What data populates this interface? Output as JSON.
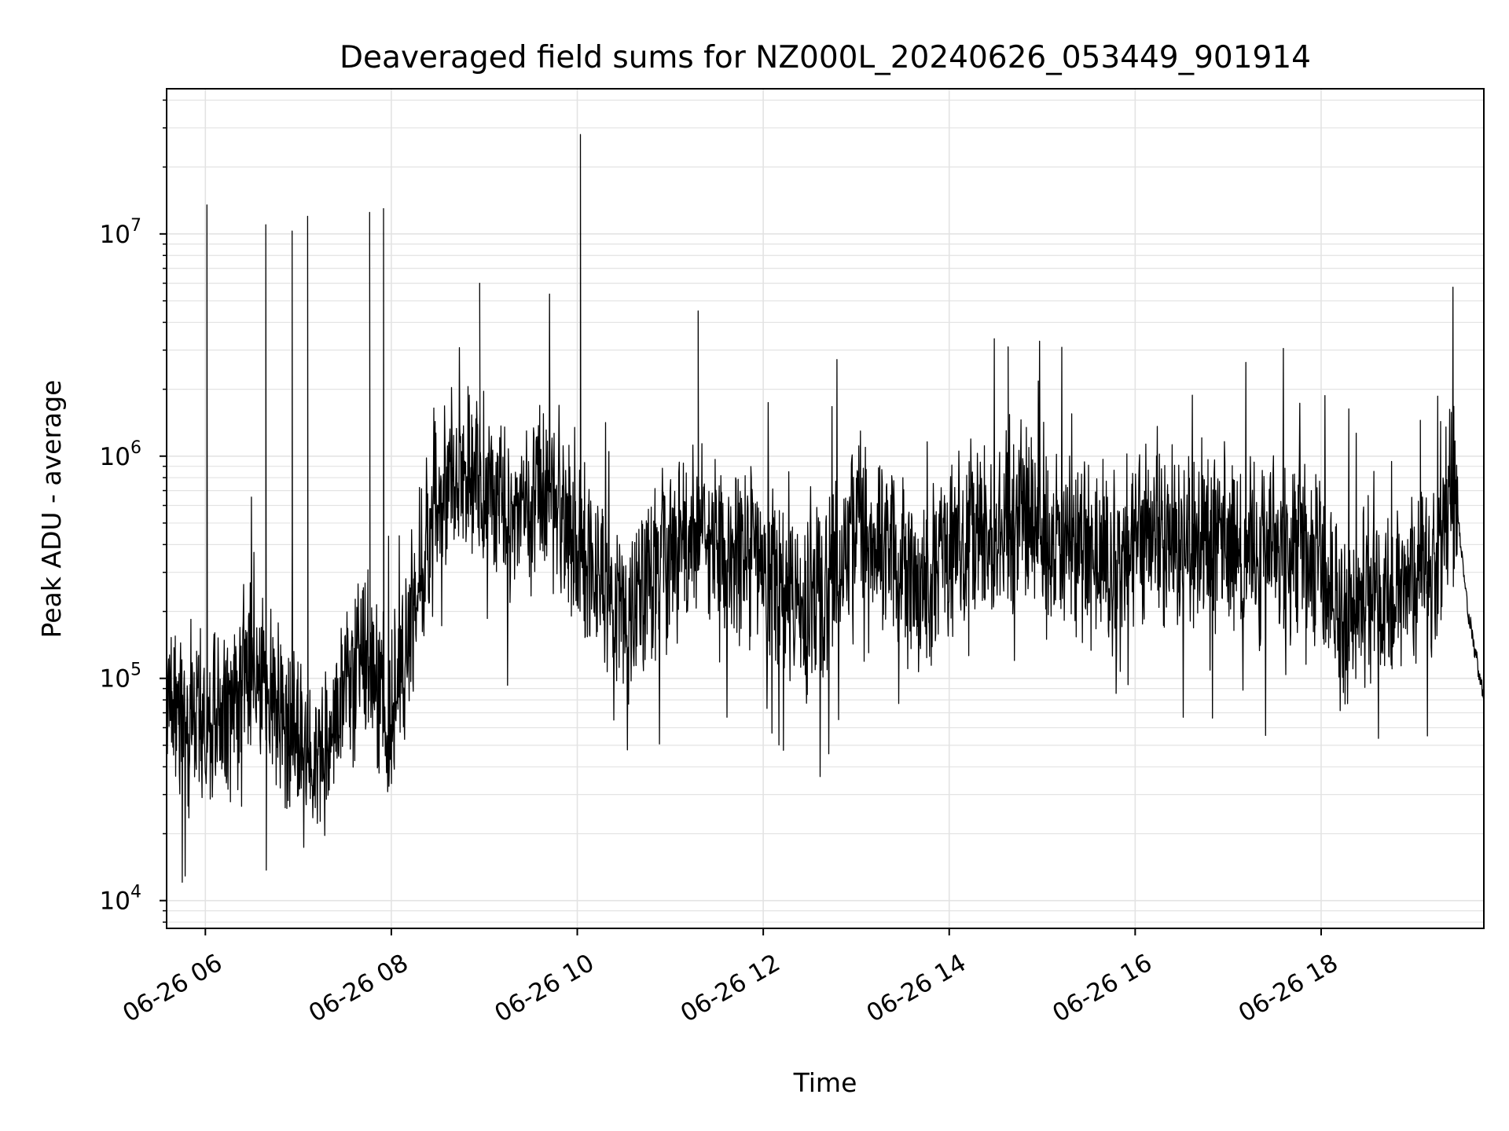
{
  "chart_data": {
    "type": "line",
    "title": "Deaveraged field sums for NZ000L_20240626_053449_901914",
    "xlabel": "Time",
    "ylabel": "Peak ADU - average",
    "y_scale": "log",
    "ylim": [
      7500,
      45000000
    ],
    "xlim": [
      "2024-06-26 05:35",
      "2024-06-26 19:45"
    ],
    "x_ticks": [
      {
        "time": "2024-06-26 06:00",
        "label": "06-26 06"
      },
      {
        "time": "2024-06-26 08:00",
        "label": "06-26 08"
      },
      {
        "time": "2024-06-26 10:00",
        "label": "06-26 10"
      },
      {
        "time": "2024-06-26 12:00",
        "label": "06-26 12"
      },
      {
        "time": "2024-06-26 14:00",
        "label": "06-26 14"
      },
      {
        "time": "2024-06-26 16:00",
        "label": "06-26 16"
      },
      {
        "time": "2024-06-26 18:00",
        "label": "06-26 18"
      }
    ],
    "y_ticks": [
      {
        "value": 10000,
        "base": "10",
        "exp": "4"
      },
      {
        "value": 100000,
        "base": "10",
        "exp": "5"
      },
      {
        "value": 1000000,
        "base": "10",
        "exp": "6"
      },
      {
        "value": 10000000,
        "base": "10",
        "exp": "7"
      }
    ],
    "grid": true,
    "line_color": "#000000",
    "grid_color": "#e3e3e3",
    "series": [
      {
        "x": [
          "2024-06-26 05:35",
          "2024-06-26 05:50",
          "2024-06-26 06:00",
          "2024-06-26 06:15",
          "2024-06-26 06:30",
          "2024-06-26 06:45",
          "2024-06-26 07:00",
          "2024-06-26 07:15",
          "2024-06-26 07:30",
          "2024-06-26 07:45",
          "2024-06-26 08:00",
          "2024-06-26 08:15",
          "2024-06-26 08:30",
          "2024-06-26 08:45",
          "2024-06-26 09:00",
          "2024-06-26 09:15",
          "2024-06-26 09:30",
          "2024-06-26 09:45",
          "2024-06-26 10:00",
          "2024-06-26 10:15",
          "2024-06-26 10:30",
          "2024-06-26 10:45",
          "2024-06-26 11:00",
          "2024-06-26 11:15",
          "2024-06-26 11:30",
          "2024-06-26 11:45",
          "2024-06-26 12:00",
          "2024-06-26 12:15",
          "2024-06-26 12:30",
          "2024-06-26 12:45",
          "2024-06-26 13:00",
          "2024-06-26 13:15",
          "2024-06-26 13:30",
          "2024-06-26 13:45",
          "2024-06-26 14:00",
          "2024-06-26 14:15",
          "2024-06-26 14:30",
          "2024-06-26 14:45",
          "2024-06-26 15:00",
          "2024-06-26 15:15",
          "2024-06-26 15:30",
          "2024-06-26 15:45",
          "2024-06-26 16:00",
          "2024-06-26 16:15",
          "2024-06-26 16:30",
          "2024-06-26 16:45",
          "2024-06-26 17:00",
          "2024-06-26 17:15",
          "2024-06-26 17:30",
          "2024-06-26 17:45",
          "2024-06-26 18:00",
          "2024-06-26 18:15",
          "2024-06-26 18:30",
          "2024-06-26 18:45",
          "2024-06-26 19:00",
          "2024-06-26 19:15",
          "2024-06-26 19:25",
          "2024-06-26 19:35",
          "2024-06-26 19:45"
        ],
        "y": [
          90000,
          70000,
          65000,
          70000,
          110000,
          80000,
          50000,
          40000,
          100000,
          120000,
          70000,
          200000,
          700000,
          900000,
          800000,
          600000,
          650000,
          600000,
          400000,
          250000,
          200000,
          250000,
          350000,
          450000,
          400000,
          350000,
          300000,
          250000,
          200000,
          300000,
          500000,
          400000,
          300000,
          250000,
          400000,
          500000,
          450000,
          550000,
          500000,
          400000,
          350000,
          300000,
          450000,
          400000,
          400000,
          450000,
          400000,
          350000,
          400000,
          350000,
          300000,
          200000,
          250000,
          220000,
          250000,
          350000,
          800000,
          200000,
          80000
        ]
      }
    ],
    "spikes": [
      {
        "time": "2024-06-26 06:01",
        "value": 13500000
      },
      {
        "time": "2024-06-26 06:39",
        "value": 11000000
      },
      {
        "time": "2024-06-26 06:56",
        "value": 10300000
      },
      {
        "time": "2024-06-26 07:06",
        "value": 12000000
      },
      {
        "time": "2024-06-26 07:46",
        "value": 12500000
      },
      {
        "time": "2024-06-26 07:55",
        "value": 13000000
      },
      {
        "time": "2024-06-26 08:57",
        "value": 6000000
      },
      {
        "time": "2024-06-26 10:02",
        "value": 28000000
      },
      {
        "time": "2024-06-26 11:18",
        "value": 4500000
      },
      {
        "time": "2024-06-26 14:38",
        "value": 3100000
      },
      {
        "time": "2024-06-26 19:04",
        "value": 1450000
      }
    ]
  }
}
